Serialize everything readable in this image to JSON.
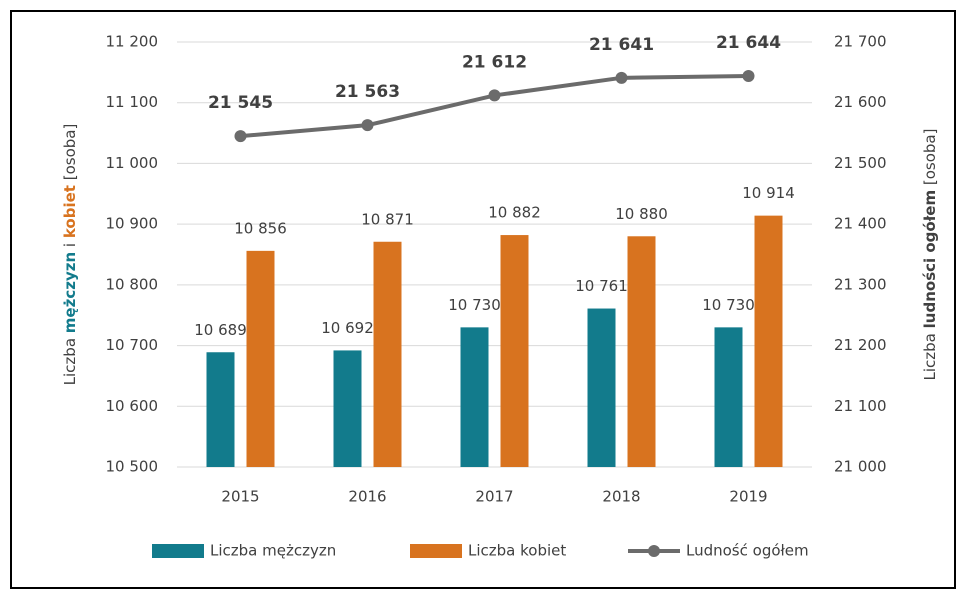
{
  "chart_data": {
    "type": "bar_line",
    "categories": [
      "2015",
      "2016",
      "2017",
      "2018",
      "2019"
    ],
    "series": [
      {
        "name": "Liczba mężczyzn",
        "color": "#127b8c",
        "type": "bar",
        "values": [
          10689,
          10692,
          10730,
          10761,
          10730
        ],
        "value_labels": [
          "10 689",
          "10 692",
          "10 730",
          "10 761",
          "10 730"
        ]
      },
      {
        "name": "Liczba kobiet",
        "color": "#d8731f",
        "type": "bar",
        "values": [
          10856,
          10871,
          10882,
          10880,
          10914
        ],
        "value_labels": [
          "10 856",
          "10 871",
          "10 882",
          "10 880",
          "10 914"
        ]
      },
      {
        "name": "Ludność ogółem",
        "color": "#6b6b6b",
        "type": "line",
        "axis": "y2",
        "values": [
          21545,
          21563,
          21612,
          21641,
          21644
        ],
        "value_labels": [
          "21 545",
          "21 563",
          "21 612",
          "21 641",
          "21 644"
        ]
      }
    ],
    "ylabel": [
      "Liczba",
      "mężczyzn",
      "i",
      "kobiet",
      "[osoba]"
    ],
    "y2label": [
      "Liczba",
      "ludności ogółem",
      "[osoba]"
    ],
    "ylim": [
      10500,
      11200
    ],
    "yticks": [
      {
        "value": 10500,
        "label": "10 500"
      },
      {
        "value": 10600,
        "label": "10 600"
      },
      {
        "value": 10700,
        "label": "10 700"
      },
      {
        "value": 10800,
        "label": "10 800"
      },
      {
        "value": 10900,
        "label": "10 900"
      },
      {
        "value": 11000,
        "label": "11 000"
      },
      {
        "value": 11100,
        "label": "11 100"
      },
      {
        "value": 11200,
        "label": "11 200"
      }
    ],
    "y2lim": [
      21000,
      21700
    ],
    "y2ticks": [
      {
        "value": 21000,
        "label": "21 000"
      },
      {
        "value": 21100,
        "label": "21 100"
      },
      {
        "value": 21200,
        "label": "21 200"
      },
      {
        "value": 21300,
        "label": "21 300"
      },
      {
        "value": 21400,
        "label": "21 400"
      },
      {
        "value": 21500,
        "label": "21 500"
      },
      {
        "value": 21600,
        "label": "21 600"
      },
      {
        "value": 21700,
        "label": "21 700"
      }
    ],
    "grid": true,
    "legend": "bottom"
  }
}
